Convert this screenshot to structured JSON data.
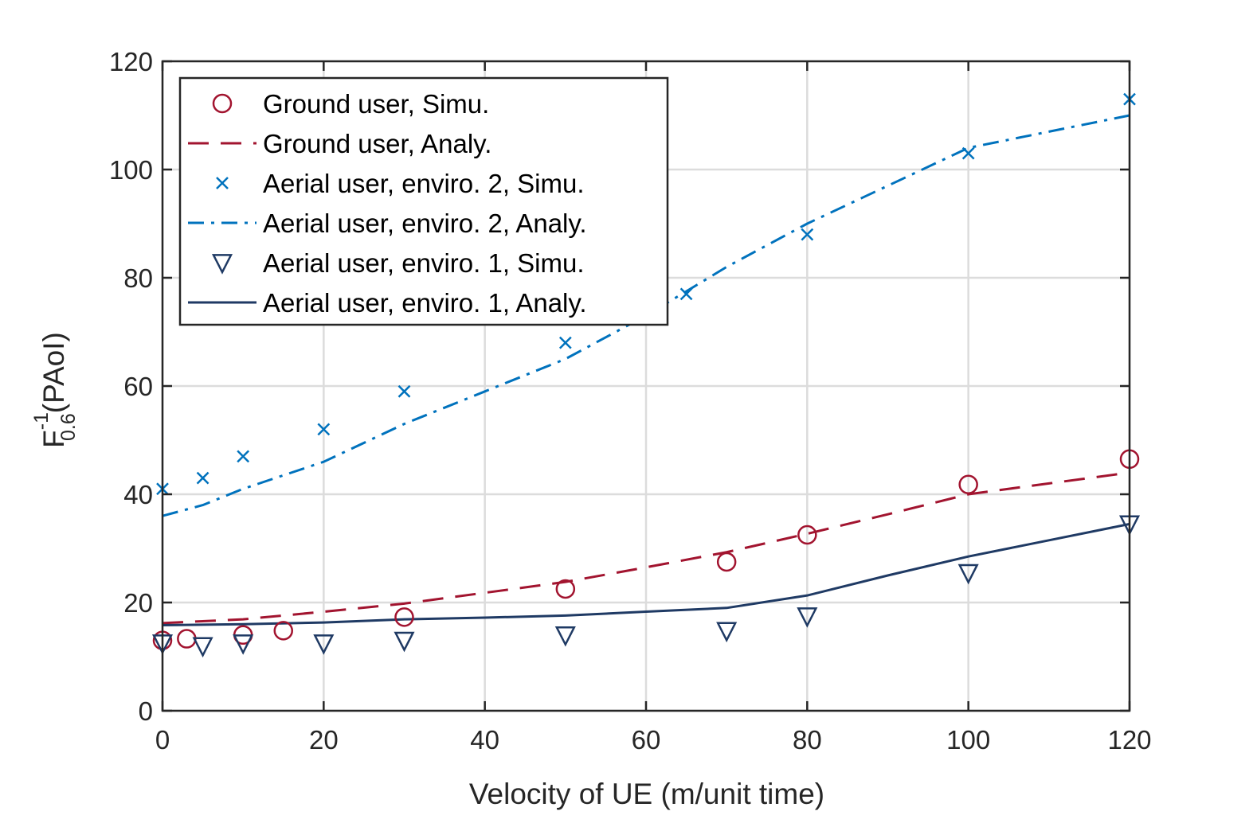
{
  "chart_data": {
    "type": "line",
    "title": "",
    "xlabel": "Velocity of UE (m/unit time)",
    "ylabel_main": "F",
    "ylabel_sup": "-1",
    "ylabel_sub": "0.6",
    "ylabel_suffix": "(PAoI)",
    "xlim": [
      0,
      120
    ],
    "ylim": [
      0,
      120
    ],
    "xticks": [
      0,
      20,
      40,
      60,
      80,
      100,
      120
    ],
    "yticks": [
      0,
      20,
      40,
      60,
      80,
      100,
      120
    ],
    "grid": true,
    "legend_position": "top-left",
    "series": [
      {
        "name": "Ground user, Simu.",
        "style": "marker",
        "marker": "circle",
        "color": "#A2142F",
        "x": [
          0,
          3,
          10,
          15,
          30,
          50,
          70,
          80,
          100,
          120
        ],
        "y": [
          13,
          13.3,
          14,
          14.8,
          17.3,
          22.5,
          27.5,
          32.5,
          41.8,
          46.5
        ]
      },
      {
        "name": "Ground user, Analy.",
        "style": "line",
        "dash": "dashed",
        "color": "#A2142F",
        "x": [
          0,
          10,
          20,
          30,
          40,
          50,
          60,
          70,
          80,
          90,
          100,
          110,
          120
        ],
        "y": [
          16.2,
          16.9,
          18.3,
          19.8,
          21.8,
          23.8,
          26.5,
          29.3,
          32.7,
          36.3,
          40,
          42,
          44
        ]
      },
      {
        "name": "Aerial user, enviro. 2, Simu.",
        "style": "marker",
        "marker": "cross",
        "color": "#0072BD",
        "x": [
          0,
          5,
          10,
          20,
          30,
          50,
          65,
          80,
          100,
          120
        ],
        "y": [
          41,
          43,
          47,
          52,
          59,
          68,
          77,
          88,
          103,
          113
        ]
      },
      {
        "name": "Aerial user, enviro. 2, Analy.",
        "style": "line",
        "dash": "dashdot",
        "color": "#0072BD",
        "x": [
          0,
          5,
          10,
          20,
          30,
          40,
          50,
          60,
          70,
          80,
          90,
          100,
          110,
          120
        ],
        "y": [
          36,
          38,
          41,
          46,
          53,
          59,
          65,
          73,
          82,
          90,
          97,
          104,
          107,
          110
        ]
      },
      {
        "name": "Aerial user, enviro. 1, Simu.",
        "style": "marker",
        "marker": "triangle-down",
        "color": "#1F3A64",
        "x": [
          0,
          5,
          10,
          20,
          30,
          50,
          70,
          80,
          100,
          120
        ],
        "y": [
          12.5,
          12,
          12.5,
          12.5,
          13,
          14,
          14.8,
          17.5,
          25.5,
          34.5
        ]
      },
      {
        "name": "Aerial user, enviro. 1, Analy.",
        "style": "line",
        "dash": "solid",
        "color": "#1F3A64",
        "x": [
          0,
          10,
          20,
          30,
          40,
          50,
          60,
          70,
          80,
          90,
          100,
          110,
          120
        ],
        "y": [
          15.8,
          16,
          16.3,
          16.9,
          17.2,
          17.6,
          18.3,
          19,
          21.3,
          25,
          28.5,
          31.5,
          34.5
        ]
      }
    ]
  }
}
